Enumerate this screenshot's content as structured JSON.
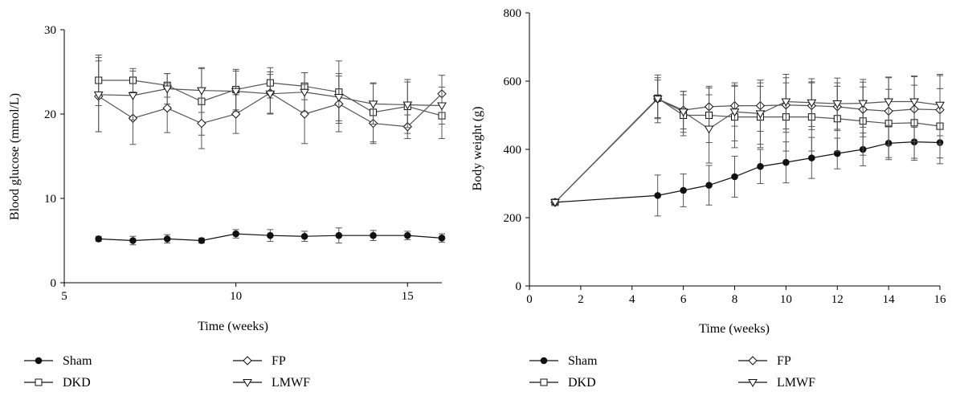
{
  "chart_data": [
    {
      "type": "line",
      "xlabel": "Time (weeks)",
      "ylabel": "Blood glucose (mmol/L)",
      "xlim": [
        5,
        16
      ],
      "ylim": [
        0,
        30
      ],
      "xticks": [
        5,
        10,
        15
      ],
      "yticks": [
        0,
        10,
        20,
        30
      ],
      "legend_position": "bottom",
      "series": [
        {
          "name": "Sham",
          "marker": "circle-filled",
          "x": [
            6,
            7,
            8,
            9,
            10,
            11,
            12,
            13,
            14,
            15,
            16
          ],
          "y": [
            5.2,
            5.0,
            5.2,
            5.0,
            5.8,
            5.6,
            5.5,
            5.6,
            5.6,
            5.6,
            5.3
          ],
          "err": [
            0.3,
            0.5,
            0.5,
            0.3,
            0.5,
            0.7,
            0.6,
            0.9,
            0.6,
            0.5,
            0.5
          ]
        },
        {
          "name": "DKD",
          "marker": "square-open",
          "x": [
            6,
            7,
            8,
            9,
            10,
            11,
            12,
            13,
            14,
            15,
            16
          ],
          "y": [
            24.0,
            24.0,
            23.4,
            21.5,
            22.9,
            23.7,
            23.3,
            22.6,
            20.2,
            20.9,
            19.8
          ],
          "err": [
            3.0,
            1.4,
            1.4,
            4.0,
            2.4,
            1.8,
            1.6,
            3.7,
            3.5,
            3.2,
            2.7
          ]
        },
        {
          "name": "FP",
          "marker": "diamond-open",
          "x": [
            6,
            7,
            8,
            9,
            10,
            11,
            12,
            13,
            14,
            15,
            16
          ],
          "y": [
            22.1,
            19.5,
            20.7,
            18.9,
            20.0,
            22.5,
            20.0,
            21.2,
            18.9,
            18.5,
            22.4
          ],
          "err": [
            4.2,
            3.1,
            2.9,
            3.0,
            2.3,
            2.5,
            3.5,
            3.3,
            2.4,
            1.4,
            2.2
          ]
        },
        {
          "name": "LMWF",
          "marker": "triangle-down-open",
          "x": [
            6,
            7,
            8,
            9,
            10,
            11,
            12,
            13,
            14,
            15,
            16
          ],
          "y": [
            22.3,
            22.2,
            23.0,
            22.8,
            22.7,
            22.4,
            22.6,
            22.0,
            21.2,
            21.1,
            21.0
          ],
          "err": [
            4.4,
            2.9,
            1.8,
            2.6,
            2.4,
            2.3,
            2.3,
            2.8,
            2.4,
            2.7,
            2.2
          ]
        }
      ]
    },
    {
      "type": "line",
      "xlabel": "Time (weeks)",
      "ylabel": "Body weight (g)",
      "xlim": [
        0,
        16
      ],
      "ylim": [
        0,
        800
      ],
      "xticks": [
        0,
        2,
        4,
        6,
        8,
        10,
        12,
        14,
        16
      ],
      "yticks": [
        0,
        200,
        400,
        600,
        800
      ],
      "legend_position": "bottom",
      "series": [
        {
          "name": "Sham",
          "marker": "circle-filled",
          "x": [
            1,
            5,
            6,
            7,
            8,
            9,
            10,
            11,
            12,
            13,
            14,
            15,
            16
          ],
          "y": [
            245,
            265,
            280,
            295,
            320,
            350,
            362,
            375,
            388,
            400,
            418,
            422,
            420
          ],
          "err": [
            8,
            60,
            48,
            58,
            60,
            50,
            60,
            60,
            45,
            48,
            48,
            48,
            45
          ]
        },
        {
          "name": "DKD",
          "marker": "square-open",
          "x": [
            1,
            5,
            6,
            7,
            8,
            9,
            10,
            11,
            12,
            13,
            14,
            15,
            16
          ],
          "y": [
            245,
            550,
            500,
            500,
            495,
            495,
            495,
            495,
            490,
            483,
            476,
            478,
            468
          ],
          "err": [
            8,
            60,
            60,
            80,
            90,
            90,
            100,
            100,
            95,
            100,
            100,
            110,
            110
          ]
        },
        {
          "name": "FP",
          "marker": "diamond-open",
          "x": [
            1,
            5,
            6,
            7,
            8,
            9,
            10,
            11,
            12,
            13,
            14,
            15,
            16
          ],
          "y": [
            245,
            548,
            515,
            525,
            528,
            528,
            530,
            528,
            525,
            517,
            512,
            518,
            516
          ],
          "err": [
            8,
            55,
            55,
            60,
            60,
            75,
            80,
            70,
            70,
            80,
            100,
            95,
            100
          ]
        },
        {
          "name": "LMWF",
          "marker": "triangle-down-open",
          "x": [
            1,
            5,
            6,
            7,
            8,
            9,
            10,
            11,
            12,
            13,
            14,
            15,
            16
          ],
          "y": [
            245,
            548,
            510,
            460,
            510,
            505,
            540,
            537,
            534,
            535,
            540,
            540,
            530
          ],
          "err": [
            8,
            70,
            60,
            100,
            85,
            90,
            80,
            70,
            75,
            70,
            70,
            75,
            90
          ]
        }
      ]
    }
  ]
}
